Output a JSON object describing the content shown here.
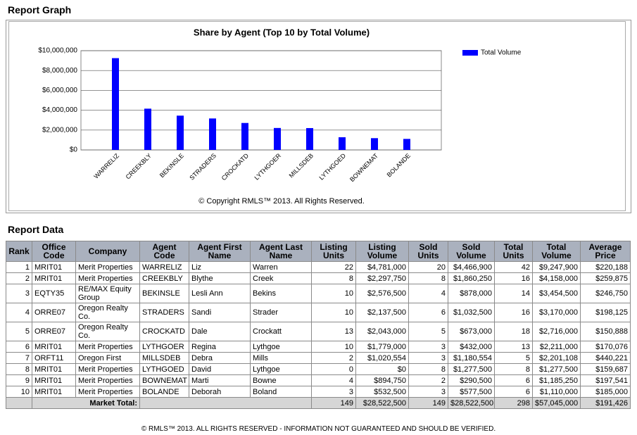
{
  "header": {
    "graph_title": "Report Graph",
    "data_title": "Report Data"
  },
  "chart_data": {
    "type": "bar",
    "title": "Share by Agent (Top 10 by Total Volume)",
    "categories": [
      "WARRELIZ",
      "CREEKBLY",
      "BEKINSLE",
      "STRADERS",
      "CROCKATD",
      "LYTHGOER",
      "MILLSDEB",
      "LYTHGOED",
      "BOWNEMAT",
      "BOLANDE"
    ],
    "series": [
      {
        "name": "Total Volume",
        "color": "#0000ff",
        "values": [
          9247900,
          4158000,
          3454500,
          3170000,
          2716000,
          2211000,
          2201108,
          1277500,
          1185250,
          1110000
        ]
      }
    ],
    "ylim": [
      0,
      10000000
    ],
    "yticks": [
      {
        "value": 0,
        "label": "$0"
      },
      {
        "value": 2000000,
        "label": "$2,000,000"
      },
      {
        "value": 4000000,
        "label": "$4,000,000"
      },
      {
        "value": 6000000,
        "label": "$6,000,000"
      },
      {
        "value": 8000000,
        "label": "$8,000,000"
      },
      {
        "value": 10000000,
        "label": "$10,000,000"
      }
    ],
    "grid": true,
    "legend": "right",
    "copyright": "© Copyright RMLS™ 2013.  All Rights Reserved."
  },
  "table": {
    "columns": [
      "Rank",
      "Office Code",
      "Company",
      "Agent Code",
      "Agent First Name",
      "Agent Last Name",
      "Listing Units",
      "Listing Volume",
      "Sold Units",
      "Sold Volume",
      "Total Units",
      "Total Volume",
      "Average Price"
    ],
    "rows": [
      [
        "1",
        "MRIT01",
        "Merit Properties",
        "WARRELIZ",
        "Liz",
        "Warren",
        "22",
        "$4,781,000",
        "20",
        "$4,466,900",
        "42",
        "$9,247,900",
        "$220,188"
      ],
      [
        "2",
        "MRIT01",
        "Merit Properties",
        "CREEKBLY",
        "Blythe",
        "Creek",
        "8",
        "$2,297,750",
        "8",
        "$1,860,250",
        "16",
        "$4,158,000",
        "$259,875"
      ],
      [
        "3",
        "EQTY35",
        "RE/MAX Equity Group",
        "BEKINSLE",
        "Lesli Ann",
        "Bekins",
        "10",
        "$2,576,500",
        "4",
        "$878,000",
        "14",
        "$3,454,500",
        "$246,750"
      ],
      [
        "4",
        "ORRE07",
        "Oregon Realty Co.",
        "STRADERS",
        "Sandi",
        "Strader",
        "10",
        "$2,137,500",
        "6",
        "$1,032,500",
        "16",
        "$3,170,000",
        "$198,125"
      ],
      [
        "5",
        "ORRE07",
        "Oregon Realty Co.",
        "CROCKATD",
        "Dale",
        "Crockatt",
        "13",
        "$2,043,000",
        "5",
        "$673,000",
        "18",
        "$2,716,000",
        "$150,888"
      ],
      [
        "6",
        "MRIT01",
        "Merit Properties",
        "LYTHGOER",
        "Regina",
        "Lythgoe",
        "10",
        "$1,779,000",
        "3",
        "$432,000",
        "13",
        "$2,211,000",
        "$170,076"
      ],
      [
        "7",
        "ORFT11",
        "Oregon First",
        "MILLSDEB",
        "Debra",
        "Mills",
        "2",
        "$1,020,554",
        "3",
        "$1,180,554",
        "5",
        "$2,201,108",
        "$440,221"
      ],
      [
        "8",
        "MRIT01",
        "Merit Properties",
        "LYTHGOED",
        "David",
        "Lythgoe",
        "0",
        "$0",
        "8",
        "$1,277,500",
        "8",
        "$1,277,500",
        "$159,687"
      ],
      [
        "9",
        "MRIT01",
        "Merit Properties",
        "BOWNEMAT",
        "Marti",
        "Bowne",
        "4",
        "$894,750",
        "2",
        "$290,500",
        "6",
        "$1,185,250",
        "$197,541"
      ],
      [
        "10",
        "MRIT01",
        "Merit Properties",
        "BOLANDE",
        "Deborah",
        "Boland",
        "3",
        "$532,500",
        "3",
        "$577,500",
        "6",
        "$1,110,000",
        "$185,000"
      ]
    ],
    "total": [
      "Market Total:",
      "149",
      "$28,522,500",
      "149",
      "$28,522,500",
      "298",
      "$57,045,000",
      "$191,426"
    ]
  },
  "footer": "© RMLS™ 2013. ALL RIGHTS RESERVED - INFORMATION NOT GUARANTEED AND SHOULD BE VERIFIED."
}
